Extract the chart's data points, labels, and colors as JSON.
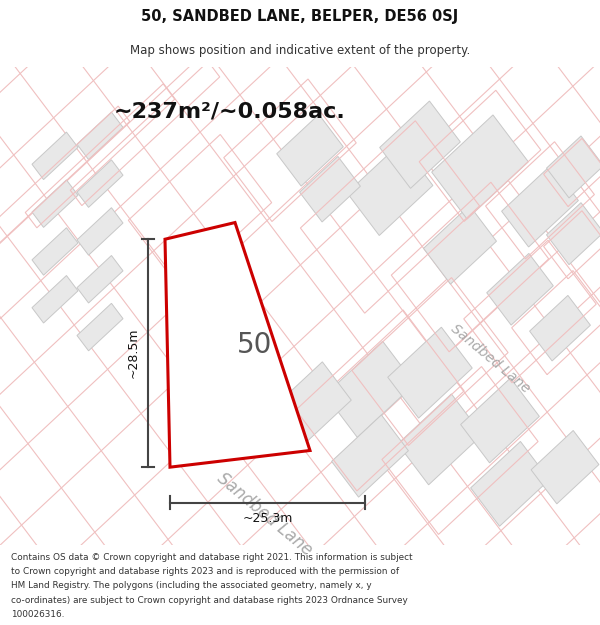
{
  "title_line1": "50, SANDBED LANE, BELPER, DE56 0SJ",
  "title_line2": "Map shows position and indicative extent of the property.",
  "area_text": "~237m²/~0.058ac.",
  "plot_label": "50",
  "dim_height": "~28.5m",
  "dim_width": "~25.3m",
  "road_label1": "Sandbed Lane",
  "road_label2": "Sandbed Lane",
  "footer_lines": [
    "Contains OS data © Crown copyright and database right 2021. This information is subject",
    "to Crown copyright and database rights 2023 and is reproduced with the permission of",
    "HM Land Registry. The polygons (including the associated geometry, namely x, y",
    "co-ordinates) are subject to Crown copyright and database rights 2023 Ordnance Survey",
    "100026316."
  ],
  "map_bg": "#ffffff",
  "plot_fill": "#ffffff",
  "plot_edge": "#cc0000",
  "neighbor_fill": "#e8e8e8",
  "neighbor_edge": "#c8c8c8",
  "grid_color": "#f0c0c0",
  "parcel_outline_color": "#f0c0c0",
  "dim_color": "#444444",
  "road_text_color": "#aaaaaa",
  "area_text_color": "#111111"
}
